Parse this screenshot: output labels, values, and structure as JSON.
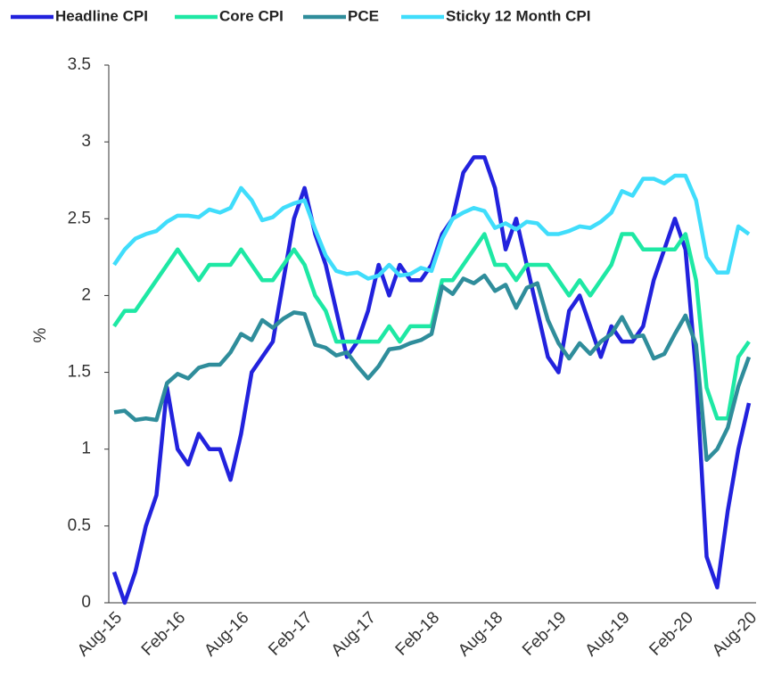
{
  "chart_data": {
    "type": "line",
    "y_label": "%",
    "categories": [
      "Aug-15",
      null,
      null,
      null,
      null,
      null,
      "Feb-16",
      null,
      null,
      null,
      null,
      null,
      "Aug-16",
      null,
      null,
      null,
      null,
      null,
      "Feb-17",
      null,
      null,
      null,
      null,
      null,
      "Aug-17",
      null,
      null,
      null,
      null,
      null,
      "Feb-18",
      null,
      null,
      null,
      null,
      null,
      "Aug-18",
      null,
      null,
      null,
      null,
      null,
      "Feb-19",
      null,
      null,
      null,
      null,
      null,
      "Aug-19",
      null,
      null,
      null,
      null,
      null,
      "Feb-20",
      null,
      null,
      null,
      null,
      null,
      "Aug-20"
    ],
    "series": [
      {
        "name": "Headline CPI",
        "color": "#2222dd",
        "values": [
          0.2,
          0.0,
          0.2,
          0.5,
          0.7,
          1.4,
          1.0,
          0.9,
          1.1,
          1.0,
          1.0,
          0.8,
          1.1,
          1.5,
          1.6,
          1.7,
          2.1,
          2.5,
          2.7,
          2.4,
          2.2,
          1.9,
          1.6,
          1.7,
          1.9,
          2.2,
          2.0,
          2.2,
          2.1,
          2.1,
          2.2,
          2.4,
          2.5,
          2.8,
          2.9,
          2.9,
          2.7,
          2.3,
          2.5,
          2.2,
          1.9,
          1.6,
          1.5,
          1.9,
          2.0,
          1.8,
          1.6,
          1.8,
          1.7,
          1.7,
          1.8,
          2.1,
          2.3,
          2.5,
          2.3,
          1.5,
          0.3,
          0.1,
          0.6,
          1.0,
          1.3
        ]
      },
      {
        "name": "Core CPI",
        "color": "#1ee8a4",
        "values": [
          1.8,
          1.9,
          1.9,
          2.0,
          2.1,
          2.2,
          2.3,
          2.2,
          2.1,
          2.2,
          2.2,
          2.2,
          2.3,
          2.2,
          2.1,
          2.1,
          2.2,
          2.3,
          2.2,
          2.0,
          1.9,
          1.7,
          1.7,
          1.7,
          1.7,
          1.7,
          1.8,
          1.7,
          1.8,
          1.8,
          1.8,
          2.1,
          2.1,
          2.2,
          2.3,
          2.4,
          2.2,
          2.2,
          2.1,
          2.2,
          2.2,
          2.2,
          2.1,
          2.0,
          2.1,
          2.0,
          2.1,
          2.2,
          2.4,
          2.4,
          2.3,
          2.3,
          2.3,
          2.3,
          2.4,
          2.1,
          1.4,
          1.2,
          1.2,
          1.6,
          1.7
        ]
      },
      {
        "name": "PCE",
        "color": "#2f8d9b",
        "values": [
          1.24,
          1.25,
          1.19,
          1.2,
          1.19,
          1.43,
          1.49,
          1.46,
          1.53,
          1.55,
          1.55,
          1.63,
          1.75,
          1.71,
          1.84,
          1.79,
          1.85,
          1.89,
          1.88,
          1.68,
          1.66,
          1.61,
          1.63,
          1.54,
          1.46,
          1.54,
          1.65,
          1.66,
          1.69,
          1.71,
          1.75,
          2.06,
          2.01,
          2.11,
          2.08,
          2.13,
          2.03,
          2.07,
          1.92,
          2.05,
          2.08,
          1.84,
          1.69,
          1.59,
          1.69,
          1.62,
          1.7,
          1.75,
          1.86,
          1.73,
          1.74,
          1.59,
          1.62,
          1.75,
          1.87,
          1.68,
          0.93,
          1.0,
          1.14,
          1.41,
          1.6
        ]
      },
      {
        "name": "Sticky 12 Month CPI",
        "color": "#40ddfb",
        "values": [
          2.2,
          2.3,
          2.37,
          2.4,
          2.42,
          2.48,
          2.52,
          2.52,
          2.51,
          2.56,
          2.54,
          2.57,
          2.7,
          2.62,
          2.49,
          2.51,
          2.57,
          2.6,
          2.62,
          2.43,
          2.26,
          2.16,
          2.14,
          2.15,
          2.11,
          2.13,
          2.2,
          2.13,
          2.14,
          2.18,
          2.16,
          2.37,
          2.5,
          2.54,
          2.57,
          2.55,
          2.44,
          2.47,
          2.43,
          2.48,
          2.47,
          2.4,
          2.4,
          2.42,
          2.45,
          2.44,
          2.48,
          2.54,
          2.68,
          2.65,
          2.76,
          2.76,
          2.73,
          2.78,
          2.78,
          2.62,
          2.25,
          2.15,
          2.15,
          2.45,
          2.4
        ]
      }
    ],
    "ylim": [
      0,
      3.5
    ],
    "yticks": [
      0,
      0.5,
      1,
      1.5,
      2,
      2.5,
      3,
      3.5
    ],
    "grid": false,
    "legend": "top"
  }
}
